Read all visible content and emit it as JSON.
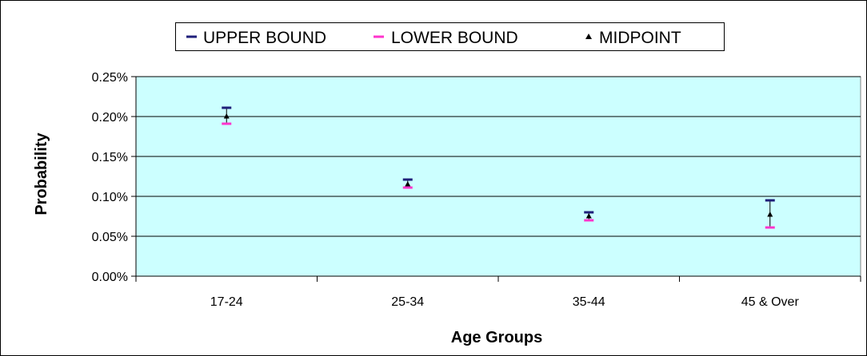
{
  "chart_data": {
    "type": "scatter",
    "title": "",
    "xlabel": "Age Groups",
    "ylabel": "Probability",
    "categories": [
      "17-24",
      "25-34",
      "35-44",
      "45 & Over"
    ],
    "ylim": [
      0,
      0.25
    ],
    "yticks": [
      0.0,
      0.05,
      0.1,
      0.15,
      0.2,
      0.25
    ],
    "ytick_labels": [
      "0.00%",
      "0.05%",
      "0.10%",
      "0.15%",
      "0.20%",
      "0.25%"
    ],
    "grid": "horizontal",
    "legend_position": "top",
    "series": [
      {
        "name": "UPPER BOUND",
        "marker": "dash",
        "color": "#1f1f7a",
        "values": [
          0.211,
          0.121,
          0.08,
          0.095
        ]
      },
      {
        "name": "LOWER BOUND",
        "marker": "dash",
        "color": "#ff33cc",
        "values": [
          0.191,
          0.111,
          0.07,
          0.061
        ]
      },
      {
        "name": "MIDPOINT",
        "marker": "triangle",
        "color": "#000000",
        "values": [
          0.2,
          0.115,
          0.075,
          0.077
        ]
      }
    ],
    "plot_background": "#ccffff"
  }
}
